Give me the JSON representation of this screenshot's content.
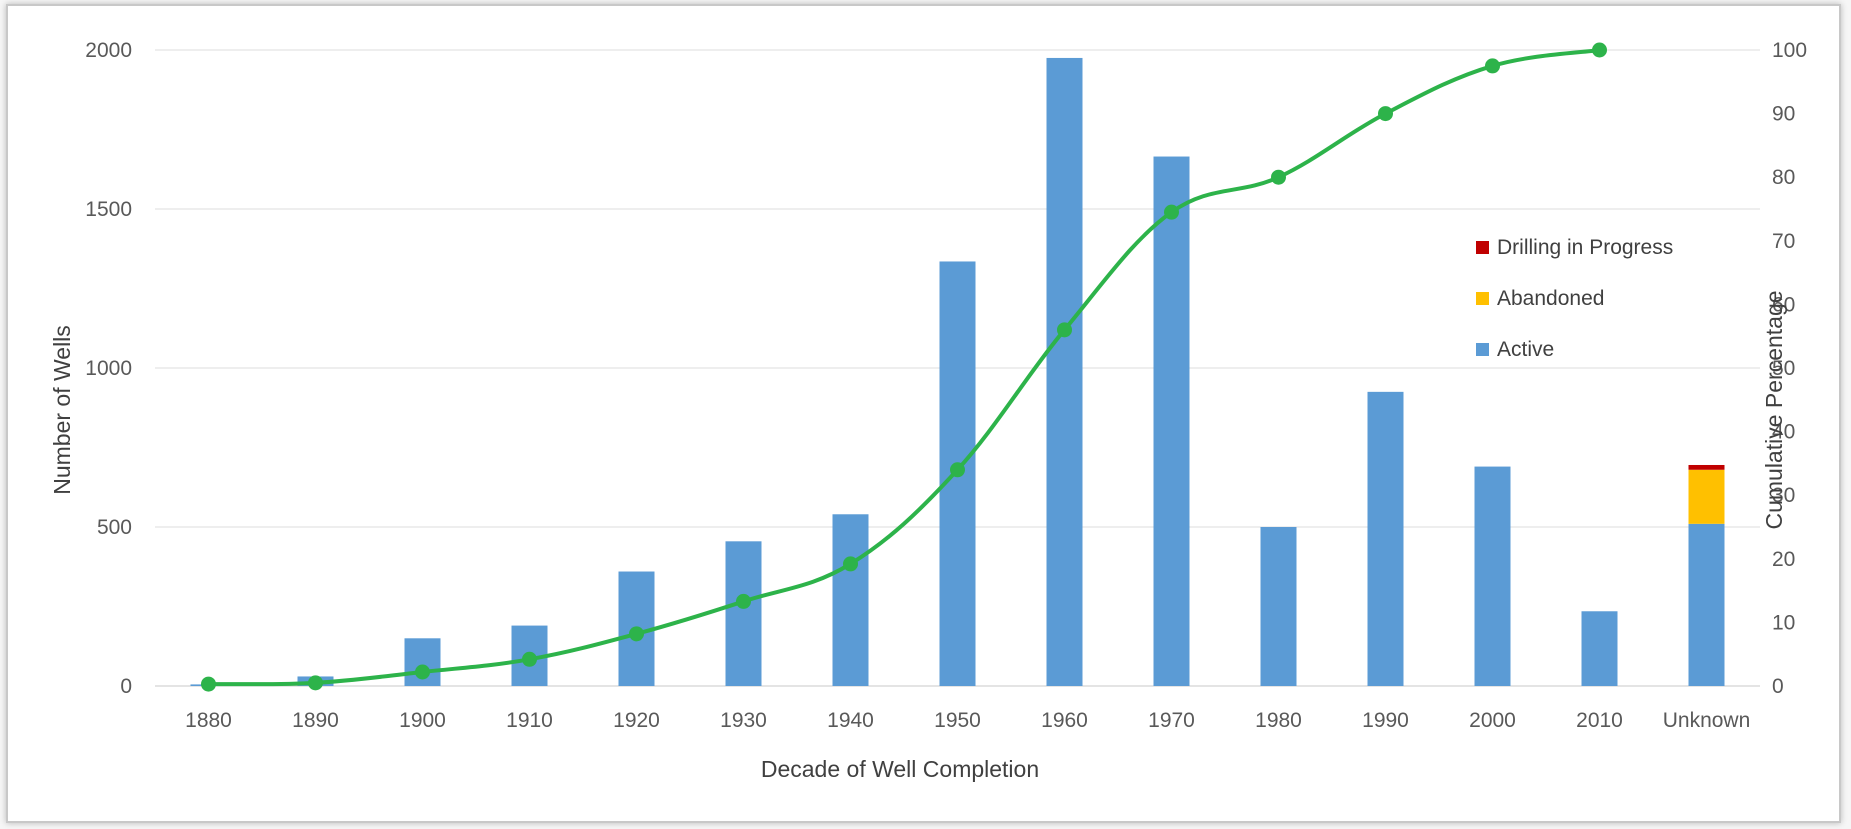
{
  "chart_data": {
    "type": "bar",
    "categories": [
      "1880",
      "1890",
      "1900",
      "1910",
      "1920",
      "1930",
      "1940",
      "1950",
      "1960",
      "1970",
      "1980",
      "1990",
      "2000",
      "2010",
      "Unknown"
    ],
    "series": [
      {
        "name": "Active",
        "values": [
          5,
          30,
          150,
          190,
          360,
          455,
          540,
          1335,
          1975,
          1665,
          500,
          925,
          690,
          235,
          510
        ],
        "color": "#5b9bd5",
        "axis": "left",
        "stack": "wells"
      },
      {
        "name": "Abandoned",
        "values": [
          0,
          0,
          0,
          0,
          0,
          0,
          0,
          0,
          0,
          0,
          0,
          0,
          0,
          0,
          170
        ],
        "color": "#ffc000",
        "axis": "left",
        "stack": "wells"
      },
      {
        "name": "Drilling in Progress",
        "values": [
          0,
          0,
          0,
          0,
          0,
          0,
          0,
          0,
          0,
          0,
          0,
          0,
          0,
          0,
          15
        ],
        "color": "#c00000",
        "axis": "left",
        "stack": "wells"
      },
      {
        "name": "",
        "type": "line",
        "axis": "right",
        "color": "#2db34a",
        "values": [
          0.3,
          0.5,
          2.2,
          4.2,
          8.2,
          13.3,
          19.2,
          34,
          56,
          74.5,
          80,
          90,
          97.5,
          100,
          null
        ]
      }
    ],
    "title": "",
    "xlabel": "Decade of Well Completion",
    "ylabel": "Number of Wells",
    "y2label": "Cumulative Percentage",
    "ylim": [
      0,
      2000
    ],
    "yticks": [
      "0",
      "500",
      "1000",
      "1500",
      "2000"
    ],
    "y2lim": [
      0,
      100
    ],
    "y2ticks": [
      "0",
      "10",
      "20",
      "30",
      "40",
      "50",
      "60",
      "70",
      "80",
      "90",
      "100"
    ],
    "grid": true,
    "legend_position": "right",
    "legend": [
      "Drilling in Progress",
      "Abandoned",
      "Active"
    ]
  }
}
